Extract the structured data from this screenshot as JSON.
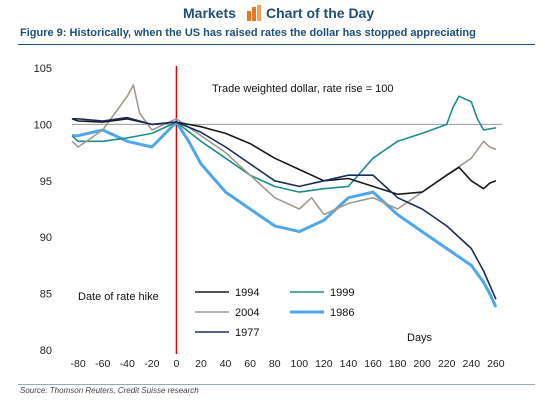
{
  "header": {
    "left": "Markets",
    "right": "Chart of the Day"
  },
  "figure": {
    "label": "Figure 9:",
    "title": "Historically, when the US has raised rates the dollar has stopped appreciating"
  },
  "source": "Source: Thomson Reuters, Credit Suisse research",
  "colors": {
    "brand": "#1f4e79",
    "brand_icon": "#e87722",
    "s1994": "#1a1a1a",
    "s1999": "#1b8e8a",
    "s2004": "#a39a8f",
    "s1986": "#4fa7ea",
    "s1977": "#1b2c5e",
    "ratehike": "#e00000"
  },
  "chart_data": {
    "type": "line",
    "title": "Trade weighted dollar, rate rise = 100",
    "xlabel": "Days",
    "ylabel": "",
    "xlim": [
      -85,
      265
    ],
    "ylim": [
      80,
      105
    ],
    "xticks": [
      -80,
      -60,
      -40,
      -20,
      0,
      20,
      40,
      60,
      80,
      100,
      120,
      140,
      160,
      180,
      200,
      220,
      240,
      260
    ],
    "yticks": [
      80,
      85,
      90,
      95,
      100,
      105
    ],
    "reference_line": {
      "y": 100
    },
    "vertical_marker": {
      "x": 0,
      "label": "Date of rate hike"
    },
    "legend": "bottom-left",
    "series": [
      {
        "name": "1994",
        "color_key": "s1994",
        "x": [
          -85,
          -80,
          -60,
          -40,
          -20,
          0,
          10,
          20,
          40,
          60,
          80,
          100,
          120,
          140,
          160,
          180,
          200,
          220,
          230,
          240,
          250,
          255,
          260
        ],
        "y": [
          100.5,
          100.3,
          100.2,
          100.5,
          100.0,
          100.2,
          100.0,
          99.8,
          99.2,
          98.3,
          97.0,
          96.0,
          95.0,
          95.2,
          94.5,
          93.8,
          94.0,
          95.5,
          96.2,
          95.0,
          94.3,
          94.8,
          95.0
        ]
      },
      {
        "name": "2004",
        "color_key": "s2004",
        "x": [
          -85,
          -80,
          -60,
          -50,
          -40,
          -35,
          -30,
          -20,
          0,
          20,
          40,
          60,
          80,
          100,
          110,
          120,
          140,
          160,
          180,
          200,
          220,
          240,
          250,
          255,
          260
        ],
        "y": [
          98.5,
          98.0,
          99.5,
          101.0,
          102.5,
          103.5,
          101.0,
          99.5,
          100.5,
          99.0,
          97.5,
          95.5,
          93.5,
          92.5,
          93.5,
          92.0,
          93.0,
          93.5,
          92.5,
          94.0,
          95.5,
          97.0,
          98.5,
          98.0,
          97.8
        ]
      },
      {
        "name": "1977",
        "color_key": "s1977",
        "x": [
          -85,
          -80,
          -60,
          -40,
          -20,
          0,
          20,
          40,
          60,
          80,
          100,
          120,
          140,
          160,
          180,
          200,
          220,
          240,
          250,
          260
        ],
        "y": [
          100.5,
          100.5,
          100.3,
          100.6,
          100.0,
          100.2,
          99.3,
          98.0,
          96.5,
          95.0,
          94.5,
          95.0,
          95.5,
          95.5,
          93.5,
          92.5,
          91.0,
          89.0,
          87.0,
          84.5
        ]
      },
      {
        "name": "1999",
        "color_key": "s1999",
        "x": [
          -85,
          -80,
          -60,
          -40,
          -20,
          0,
          20,
          40,
          60,
          80,
          100,
          120,
          140,
          160,
          180,
          200,
          220,
          225,
          230,
          240,
          245,
          250,
          260
        ],
        "y": [
          99.0,
          98.5,
          98.5,
          98.8,
          99.2,
          100.2,
          98.5,
          97.0,
          95.5,
          94.5,
          94.0,
          94.3,
          94.5,
          97.0,
          98.5,
          99.2,
          100.0,
          101.5,
          102.5,
          102.0,
          100.5,
          99.5,
          99.7
        ]
      },
      {
        "name": "1986",
        "color_key": "s1986",
        "x": [
          -85,
          -80,
          -60,
          -40,
          -20,
          0,
          10,
          20,
          40,
          60,
          80,
          100,
          120,
          140,
          160,
          180,
          200,
          220,
          240,
          250,
          255,
          260
        ],
        "y": [
          99.0,
          99.0,
          99.5,
          98.5,
          98.0,
          100.2,
          98.5,
          96.5,
          94.0,
          92.5,
          91.0,
          90.5,
          91.5,
          93.5,
          94.0,
          92.0,
          90.5,
          89.0,
          87.5,
          86.0,
          85.0,
          83.8
        ]
      }
    ]
  }
}
